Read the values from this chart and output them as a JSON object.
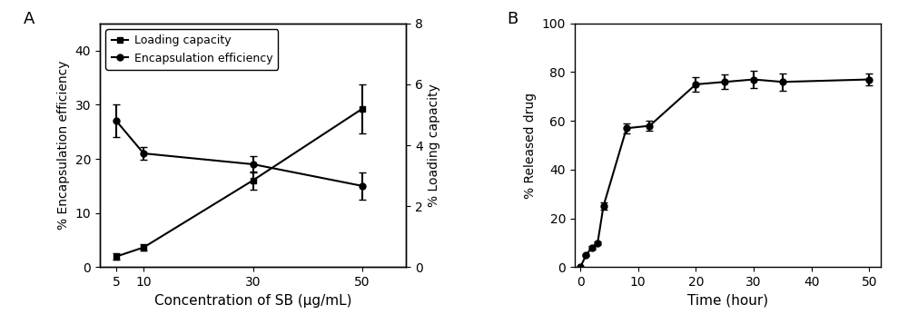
{
  "panel_A": {
    "x": [
      5,
      10,
      30,
      50
    ],
    "loading_capacity": [
      0.35,
      0.65,
      2.85,
      5.2
    ],
    "loading_capacity_err": [
      0.1,
      0.1,
      0.3,
      0.8
    ],
    "encap_efficiency": [
      27.0,
      21.0,
      19.0,
      15.0
    ],
    "encap_efficiency_err": [
      3.0,
      1.2,
      1.5,
      2.5
    ],
    "xlabel": "Concentration of SB (μg/mL)",
    "ylabel_left": "% Encapsulation efficiency",
    "ylabel_right": "% Loading capacity",
    "legend_loading": "Loading capacity",
    "legend_encap": "Encapsulation efficiency",
    "xlim": [
      2,
      58
    ],
    "ylim_left": [
      0,
      45
    ],
    "ylim_right": [
      0,
      8
    ],
    "xticks": [
      5,
      10,
      30,
      50
    ],
    "yticks_left": [
      0,
      10,
      20,
      30,
      40
    ],
    "yticks_right": [
      0,
      2,
      4,
      6,
      8
    ],
    "label": "A"
  },
  "panel_B": {
    "x": [
      0,
      1,
      2,
      3,
      4,
      8,
      12,
      20,
      25,
      30,
      35,
      50
    ],
    "y": [
      0,
      5,
      8,
      10,
      25,
      57,
      58,
      75,
      76,
      77,
      76,
      77
    ],
    "yerr": [
      0.3,
      0.5,
      0.6,
      0.7,
      1.5,
      2.0,
      2.0,
      3.0,
      3.0,
      3.5,
      3.5,
      2.5
    ],
    "xlabel": "Time (hour)",
    "ylabel": "% Released drug",
    "xlim": [
      -1,
      52
    ],
    "ylim": [
      0,
      100
    ],
    "xticks": [
      0,
      10,
      20,
      30,
      40,
      50
    ],
    "yticks": [
      0,
      20,
      40,
      60,
      80,
      100
    ],
    "label": "B"
  },
  "line_color": "#000000",
  "marker_square": "s",
  "marker_circle": "o",
  "marker_size": 5,
  "linewidth": 1.5,
  "capsize": 3,
  "font_size": 10,
  "label_font_size": 11,
  "panel_label_size": 13
}
